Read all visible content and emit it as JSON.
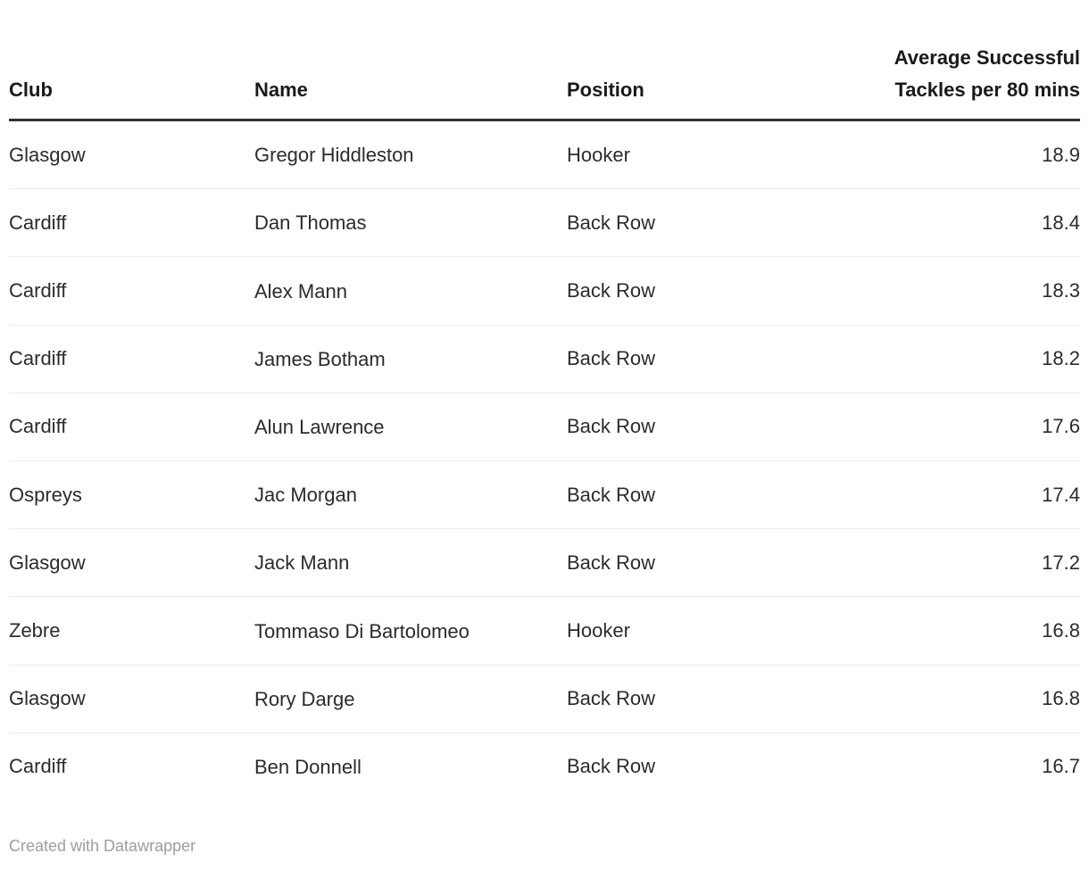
{
  "chart_data": {
    "type": "table",
    "columns": [
      "Club",
      "Name",
      "Position",
      "Average Successful Tackles per 80 mins"
    ],
    "rows": [
      [
        "Glasgow",
        "Gregor Hiddleston",
        "Hooker",
        "18.9"
      ],
      [
        "Cardiff",
        "Dan Thomas",
        "Back Row",
        "18.4"
      ],
      [
        "Cardiff",
        "Alex Mann",
        "Back Row",
        "18.3"
      ],
      [
        "Cardiff",
        "James Botham",
        "Back Row",
        "18.2"
      ],
      [
        "Cardiff",
        "Alun Lawrence",
        "Back Row",
        "17.6"
      ],
      [
        "Ospreys",
        "Jac Morgan",
        "Back Row",
        "17.4"
      ],
      [
        "Glasgow",
        "Jack Mann",
        "Back Row",
        "17.2"
      ],
      [
        "Zebre",
        "Tommaso Di Bartolomeo",
        "Hooker",
        "16.8"
      ],
      [
        "Glasgow",
        "Rory Darge",
        "Back Row",
        "16.8"
      ],
      [
        "Cardiff",
        "Ben Donnell",
        "Back Row",
        "16.7"
      ]
    ],
    "title": "",
    "legend_position": "none",
    "grid": "horizontal-row-dividers"
  },
  "footer": {
    "credit": "Created with Datawrapper"
  },
  "colors": {
    "background": "#ffffff",
    "header_text": "#1a1a1a",
    "body_text": "#2b2b2b",
    "header_rule": "#333333",
    "row_divider": "#ebebeb",
    "footer_text": "#9d9d9d"
  }
}
